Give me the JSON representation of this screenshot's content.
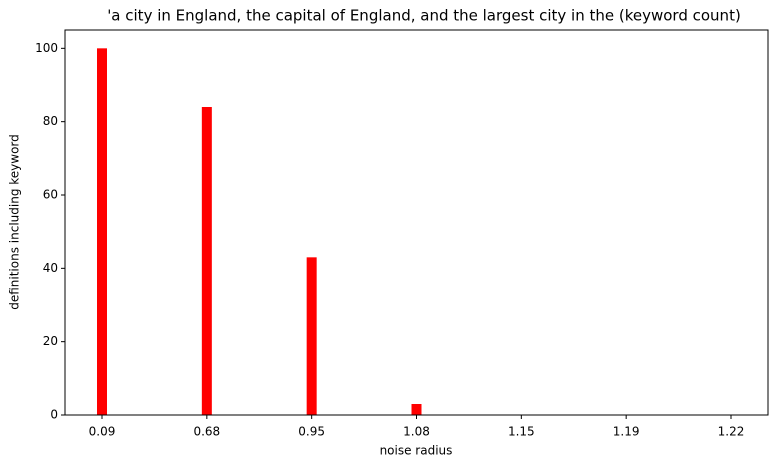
{
  "chart_data": {
    "type": "bar",
    "title": "'a city in England, the capital of England, and the largest city in the (keyword count)",
    "x_label": "noise radius",
    "y_label": "definitions including keyword",
    "categories": [
      "0.09",
      "0.68",
      "0.95",
      "1.08",
      "1.15",
      "1.19",
      "1.22"
    ],
    "values": [
      100,
      84,
      43,
      3,
      0,
      0,
      0
    ],
    "color": "#ff0000",
    "ylim": [
      0,
      105
    ],
    "yticks": [
      0,
      20,
      40,
      60,
      80,
      100
    ],
    "grid": false
  }
}
